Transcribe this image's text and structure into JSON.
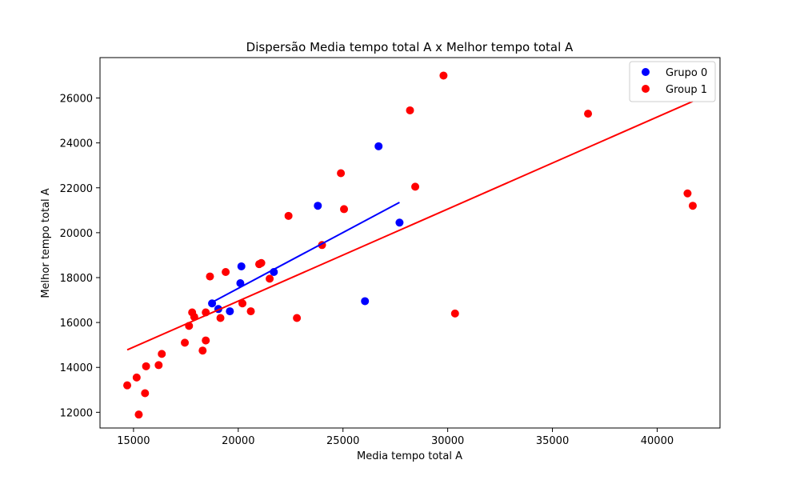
{
  "chart_data": {
    "type": "scatter",
    "title": "Dispersão Media tempo total A x Melhor tempo total A",
    "xlabel": "Media tempo total A",
    "ylabel": "Melhor tempo total A",
    "xlim": [
      13400,
      43000
    ],
    "ylim": [
      11300,
      27800
    ],
    "xticks": [
      15000,
      20000,
      25000,
      30000,
      35000,
      40000
    ],
    "yticks": [
      12000,
      14000,
      16000,
      18000,
      20000,
      22000,
      24000,
      26000
    ],
    "grid": false,
    "legend_position": "top-right",
    "series": [
      {
        "name": "Grupo 0",
        "color": "#0000ff",
        "points": [
          [
            18750,
            16850
          ],
          [
            19050,
            16600
          ],
          [
            19600,
            16500
          ],
          [
            20100,
            17750
          ],
          [
            20150,
            18500
          ],
          [
            21700,
            18250
          ],
          [
            23800,
            21200
          ],
          [
            26050,
            16950
          ],
          [
            26700,
            23850
          ],
          [
            27700,
            20450
          ]
        ],
        "trendline": {
          "x": [
            18750,
            27700
          ],
          "y": [
            16900,
            21350
          ]
        }
      },
      {
        "name": "Group 1",
        "color": "#ff0000",
        "points": [
          [
            14700,
            13200
          ],
          [
            15150,
            13550
          ],
          [
            15250,
            11900
          ],
          [
            15550,
            12850
          ],
          [
            15600,
            14050
          ],
          [
            16200,
            14100
          ],
          [
            16350,
            14600
          ],
          [
            17450,
            15100
          ],
          [
            17650,
            15850
          ],
          [
            17800,
            16450
          ],
          [
            17900,
            16250
          ],
          [
            18300,
            14750
          ],
          [
            18450,
            16450
          ],
          [
            18450,
            15200
          ],
          [
            18650,
            18050
          ],
          [
            19150,
            16200
          ],
          [
            19400,
            18250
          ],
          [
            20200,
            16850
          ],
          [
            20600,
            16500
          ],
          [
            21000,
            18600
          ],
          [
            21100,
            18650
          ],
          [
            21500,
            17950
          ],
          [
            22400,
            20750
          ],
          [
            22800,
            16200
          ],
          [
            24000,
            19450
          ],
          [
            24900,
            22650
          ],
          [
            25050,
            21050
          ],
          [
            28200,
            25450
          ],
          [
            28450,
            22050
          ],
          [
            29800,
            27000
          ],
          [
            30350,
            16400
          ],
          [
            36700,
            25300
          ],
          [
            41450,
            21750
          ],
          [
            41700,
            21200
          ]
        ],
        "trendline": {
          "x": [
            14700,
            41700
          ],
          "y": [
            14780,
            25850
          ]
        }
      }
    ]
  }
}
